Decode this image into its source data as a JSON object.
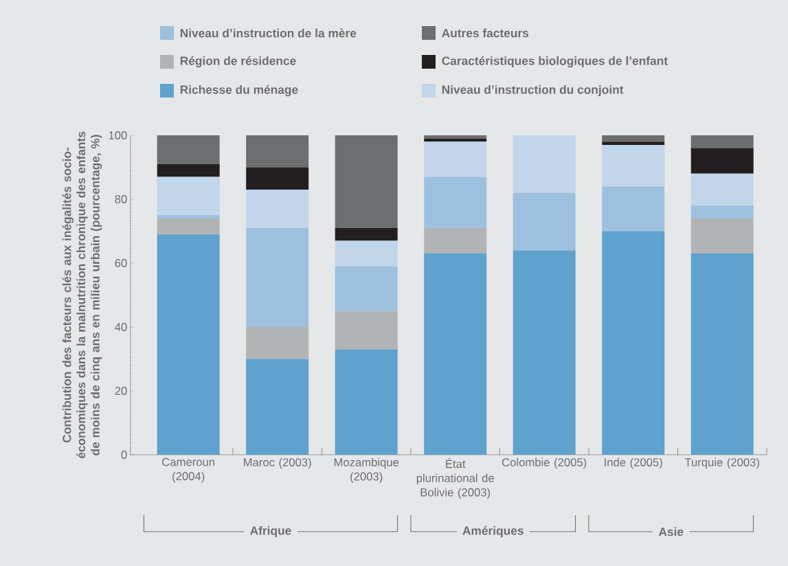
{
  "chart_data": {
    "type": "bar",
    "stacked": true,
    "ylabel": "Contribution des facteurs clés aux inégalités socio-économiques dans la malnutrition chronique des enfants de moins de cinq ans en milieu urbain (pourcentage, %)",
    "categories": [
      "Cameroun (2004)",
      "Maroc (2003)",
      "Mozambique (2003)",
      "État plurinational de Bolivie (2003)",
      "Colombie (2005)",
      "Inde (2005)",
      "Turquie (2003)"
    ],
    "series": [
      {
        "name": "Richesse du ménage",
        "color": "#5fa2cd",
        "values": [
          69,
          30,
          33,
          63,
          64,
          70,
          63
        ]
      },
      {
        "name": "Région de résidence",
        "color": "#b2b3b5",
        "values": [
          5,
          10,
          12,
          8,
          0,
          0,
          11
        ]
      },
      {
        "name": "Niveau d’instruction de la mère",
        "color": "#9dc0df",
        "values": [
          1,
          31,
          14,
          16,
          18,
          14,
          4
        ]
      },
      {
        "name": "Niveau d’instruction du conjoint",
        "color": "#c1d6ea",
        "values": [
          12,
          12,
          8,
          11,
          18,
          13,
          10
        ]
      },
      {
        "name": "Caractéristiques biologiques de l’enfant",
        "color": "#231f20",
        "values": [
          4,
          7,
          4,
          1,
          0,
          1,
          8
        ]
      },
      {
        "name": "Autres facteurs",
        "color": "#6d6e70",
        "values": [
          9,
          10,
          29,
          1,
          0,
          2,
          4
        ]
      }
    ],
    "ylim": [
      0,
      100
    ],
    "yticks": [
      0,
      20,
      40,
      60,
      80,
      100
    ],
    "legend": "top",
    "grid": false,
    "annotations": [
      "Afrique",
      "Amériques",
      "Asie"
    ]
  }
}
